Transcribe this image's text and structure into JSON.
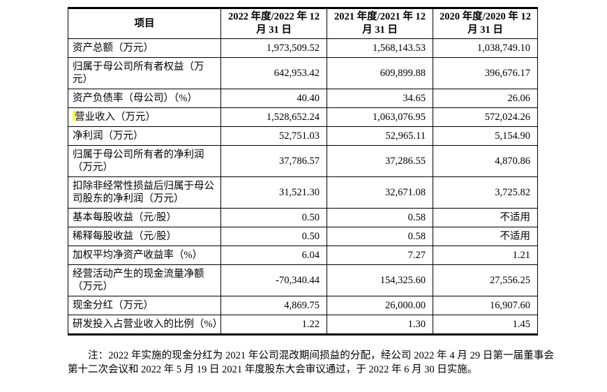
{
  "table": {
    "headers": [
      "项目",
      "2022 年度/2022 年 12 月 31 日",
      "2021 年度/2021 年 12 月 31 日",
      "2020 年度/2020 年 12 月 31 日"
    ],
    "rows": [
      {
        "label": "资产总额（万元）",
        "v2022": "1,973,509.52",
        "v2021": "1,568,143.53",
        "v2020": "1,038,749.10",
        "highlight": false
      },
      {
        "label": "归属于母公司所有者权益（万元）",
        "v2022": "642,953.42",
        "v2021": "609,899.88",
        "v2020": "396,676.17",
        "highlight": false
      },
      {
        "label": "资产负债率（母公司）（%）",
        "v2022": "40.40",
        "v2021": "34.65",
        "v2020": "26.06",
        "highlight": false
      },
      {
        "label": "营业收入（万元）",
        "v2022": "1,528,652.24",
        "v2021": "1,063,076.95",
        "v2020": "572,024.26",
        "highlight": true
      },
      {
        "label": "净利润（万元）",
        "v2022": "52,751.03",
        "v2021": "52,965.11",
        "v2020": "5,154.90",
        "highlight": false
      },
      {
        "label": "归属于母公司所有者的净利润（万元）",
        "v2022": "37,786.57",
        "v2021": "37,286.55",
        "v2020": "4,870.86",
        "highlight": false
      },
      {
        "label": "扣除非经常性损益后归属于母公司股东的净利润（万元）",
        "v2022": "31,521.30",
        "v2021": "32,671.08",
        "v2020": "3,725.82",
        "highlight": false
      },
      {
        "label": "基本每股收益（元/股）",
        "v2022": "0.50",
        "v2021": "0.58",
        "v2020": "不适用",
        "highlight": false
      },
      {
        "label": "稀释每股收益（元/股）",
        "v2022": "0.50",
        "v2021": "0.58",
        "v2020": "不适用",
        "highlight": false
      },
      {
        "label": "加权平均净资产收益率（%）",
        "v2022": "6.04",
        "v2021": "7.27",
        "v2020": "1.21",
        "highlight": false
      },
      {
        "label": "经营活动产生的现金流量净额（万元）",
        "v2022": "-70,340.44",
        "v2021": "154,325.60",
        "v2020": "27,556.25",
        "highlight": false
      },
      {
        "label": "现金分红（万元）",
        "v2022": "4,869.75",
        "v2021": "26,000.00",
        "v2020": "16,907.60",
        "highlight": false
      },
      {
        "label": "研发投入占营业收入的比例（%）",
        "v2022": "1.22",
        "v2021": "1.30",
        "v2020": "1.45",
        "highlight": false
      }
    ]
  },
  "note": {
    "text": "注：2022 年实施的现金分红为 2021 年公司混改期间损益的分配，经公司 2022 年 4 月 29 日第一届董事会第十二次会议和 2022 年 5 月 19 日 2021 年度股东大会审议通过，于 2022 年 6 月 30 日实施。"
  },
  "highlight_color": "#ffff33"
}
